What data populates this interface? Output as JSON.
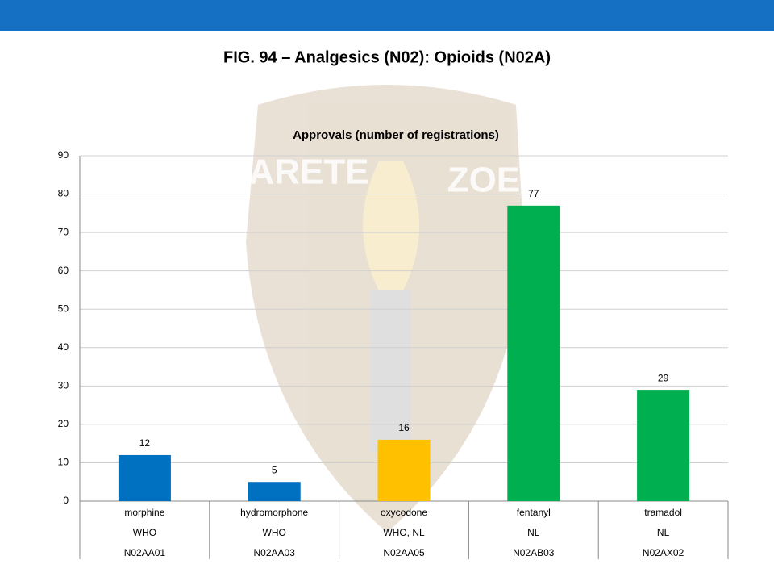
{
  "chart_data": {
    "type": "bar",
    "title": "FIG. 94 – Analgesics (N02): Opioids (N02A)",
    "subtitle": "Approvals (number of registrations)",
    "watermark": [
      "ARETE",
      "ZOE"
    ],
    "categories": [
      "morphine",
      "hydromorphone",
      "oxycodone",
      "fentanyl",
      "tramadol"
    ],
    "category_sources": [
      "WHO",
      "WHO",
      "WHO, NL",
      "NL",
      "NL"
    ],
    "category_codes": [
      "N02AA01",
      "N02AA03",
      "N02AA05",
      "N02AB03",
      "N02AX02"
    ],
    "values": [
      12,
      5,
      16,
      77,
      29
    ],
    "colors": [
      "#0070c0",
      "#0070c0",
      "#ffc000",
      "#00b050",
      "#00b050"
    ],
    "ylim": [
      0,
      90
    ],
    "yticks": [
      0,
      10,
      20,
      30,
      40,
      50,
      60,
      70,
      80,
      90
    ],
    "grid": true
  }
}
